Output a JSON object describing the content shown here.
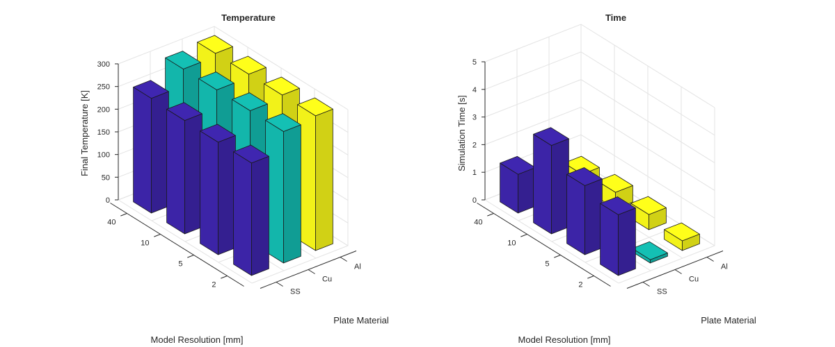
{
  "chart_data": [
    {
      "type": "bar3",
      "title": "Temperature",
      "zlabel": "Final Temperature [K]",
      "xlabel": "Model Resolution [mm]",
      "ylabel": "Plate Material",
      "resolutions": [
        "40",
        "10",
        "5",
        "2"
      ],
      "materials": [
        "SS",
        "Cu",
        "Al"
      ],
      "zlim": [
        0,
        300
      ],
      "zticks": [
        "0",
        "50",
        "100",
        "150",
        "200",
        "250",
        "300"
      ],
      "grid": true,
      "series": [
        {
          "name": "SS",
          "color": "#3f26b0",
          "values": [
            253,
            250,
            248,
            248
          ]
        },
        {
          "name": "Cu",
          "color": "#14c0b4",
          "values": [
            290,
            290,
            290,
            290
          ]
        },
        {
          "name": "Al",
          "color": "#ffff1a",
          "values": [
            297,
            297,
            297,
            297
          ]
        }
      ]
    },
    {
      "type": "bar3",
      "title": "Time",
      "zlabel": "Simulation Time [s]",
      "xlabel": "Model Resolution [mm]",
      "ylabel": "Plate Material",
      "resolutions": [
        "40",
        "10",
        "5",
        "2"
      ],
      "materials": [
        "SS",
        "Cu",
        "Al"
      ],
      "zlim": [
        0,
        5
      ],
      "zticks": [
        "0",
        "1",
        "2",
        "3",
        "4",
        "5"
      ],
      "grid": true,
      "series": [
        {
          "name": "SS",
          "color": "#3f26b0",
          "values": [
            1.4,
            3.2,
            2.5,
            2.2
          ]
        },
        {
          "name": "Cu",
          "color": "#14c0b4",
          "values": [
            0.4,
            0.35,
            0.3,
            0.12
          ]
        },
        {
          "name": "Al",
          "color": "#ffff1a",
          "values": [
            0.5,
            0.6,
            0.55,
            0.35
          ]
        }
      ]
    }
  ]
}
